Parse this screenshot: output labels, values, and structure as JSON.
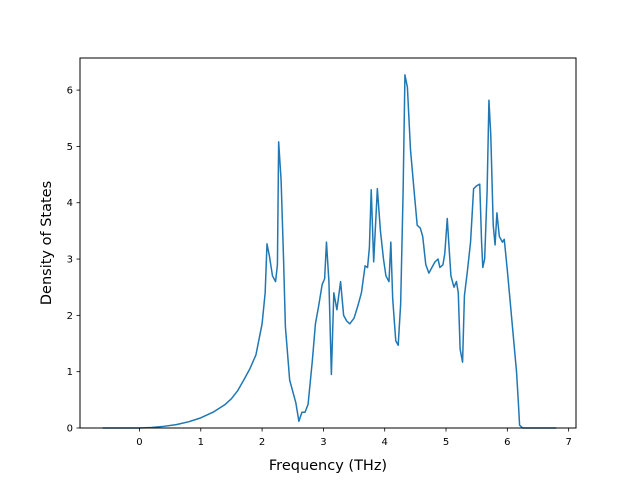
{
  "chart_data": {
    "type": "line",
    "title": "",
    "xlabel": "Frequency (THz)",
    "ylabel": "Density of States",
    "xlim": [
      -0.97,
      7.12
    ],
    "ylim": [
      0,
      6.57
    ],
    "xticks": [
      0,
      1,
      2,
      3,
      4,
      5,
      6,
      7
    ],
    "yticks": [
      0,
      1,
      2,
      3,
      4,
      5,
      6
    ],
    "grid": false,
    "series": [
      {
        "color": "#1f77b4",
        "points": [
          [
            -0.6,
            0.0
          ],
          [
            0.0,
            0.0
          ],
          [
            0.2,
            0.01
          ],
          [
            0.4,
            0.03
          ],
          [
            0.6,
            0.06
          ],
          [
            0.8,
            0.11
          ],
          [
            1.0,
            0.18
          ],
          [
            1.2,
            0.28
          ],
          [
            1.4,
            0.42
          ],
          [
            1.5,
            0.52
          ],
          [
            1.6,
            0.66
          ],
          [
            1.7,
            0.85
          ],
          [
            1.8,
            1.05
          ],
          [
            1.9,
            1.3
          ],
          [
            2.0,
            1.85
          ],
          [
            2.05,
            2.4
          ],
          [
            2.08,
            3.27
          ],
          [
            2.12,
            3.05
          ],
          [
            2.17,
            2.7
          ],
          [
            2.22,
            2.6
          ],
          [
            2.25,
            2.9
          ],
          [
            2.27,
            5.08
          ],
          [
            2.31,
            4.4
          ],
          [
            2.35,
            3.0
          ],
          [
            2.38,
            1.8
          ],
          [
            2.45,
            0.85
          ],
          [
            2.55,
            0.45
          ],
          [
            2.6,
            0.12
          ],
          [
            2.65,
            0.28
          ],
          [
            2.7,
            0.28
          ],
          [
            2.75,
            0.42
          ],
          [
            2.82,
            1.2
          ],
          [
            2.87,
            1.85
          ],
          [
            2.92,
            2.15
          ],
          [
            2.98,
            2.55
          ],
          [
            3.02,
            2.65
          ],
          [
            3.05,
            3.3
          ],
          [
            3.09,
            2.6
          ],
          [
            3.13,
            0.95
          ],
          [
            3.17,
            2.4
          ],
          [
            3.22,
            2.1
          ],
          [
            3.28,
            2.6
          ],
          [
            3.33,
            2.0
          ],
          [
            3.38,
            1.9
          ],
          [
            3.43,
            1.85
          ],
          [
            3.5,
            1.95
          ],
          [
            3.57,
            2.2
          ],
          [
            3.62,
            2.4
          ],
          [
            3.68,
            2.88
          ],
          [
            3.72,
            2.85
          ],
          [
            3.75,
            3.2
          ],
          [
            3.78,
            4.23
          ],
          [
            3.82,
            2.95
          ],
          [
            3.88,
            4.25
          ],
          [
            3.93,
            3.5
          ],
          [
            3.98,
            3.0
          ],
          [
            4.02,
            2.7
          ],
          [
            4.07,
            2.6
          ],
          [
            4.1,
            3.3
          ],
          [
            4.13,
            2.3
          ],
          [
            4.18,
            1.55
          ],
          [
            4.22,
            1.47
          ],
          [
            4.26,
            2.2
          ],
          [
            4.3,
            4.2
          ],
          [
            4.33,
            6.27
          ],
          [
            4.37,
            6.05
          ],
          [
            4.42,
            4.95
          ],
          [
            4.48,
            4.2
          ],
          [
            4.53,
            3.6
          ],
          [
            4.58,
            3.55
          ],
          [
            4.62,
            3.4
          ],
          [
            4.67,
            2.9
          ],
          [
            4.72,
            2.75
          ],
          [
            4.77,
            2.85
          ],
          [
            4.82,
            2.95
          ],
          [
            4.87,
            3.0
          ],
          [
            4.9,
            2.85
          ],
          [
            4.95,
            2.9
          ],
          [
            4.98,
            3.1
          ],
          [
            5.02,
            3.72
          ],
          [
            5.05,
            3.2
          ],
          [
            5.08,
            2.7
          ],
          [
            5.13,
            2.5
          ],
          [
            5.17,
            2.6
          ],
          [
            5.2,
            2.4
          ],
          [
            5.23,
            1.4
          ],
          [
            5.27,
            1.17
          ],
          [
            5.3,
            2.35
          ],
          [
            5.35,
            2.8
          ],
          [
            5.4,
            3.3
          ],
          [
            5.45,
            4.25
          ],
          [
            5.5,
            4.3
          ],
          [
            5.55,
            4.33
          ],
          [
            5.58,
            3.3
          ],
          [
            5.6,
            2.85
          ],
          [
            5.63,
            3.0
          ],
          [
            5.67,
            4.2
          ],
          [
            5.7,
            5.82
          ],
          [
            5.73,
            5.2
          ],
          [
            5.77,
            3.6
          ],
          [
            5.8,
            3.25
          ],
          [
            5.83,
            3.82
          ],
          [
            5.87,
            3.4
          ],
          [
            5.92,
            3.3
          ],
          [
            5.95,
            3.35
          ],
          [
            6.0,
            2.8
          ],
          [
            6.05,
            2.2
          ],
          [
            6.1,
            1.6
          ],
          [
            6.15,
            1.0
          ],
          [
            6.18,
            0.45
          ],
          [
            6.2,
            0.05
          ],
          [
            6.25,
            0.0
          ],
          [
            6.8,
            0.0
          ]
        ]
      }
    ]
  }
}
